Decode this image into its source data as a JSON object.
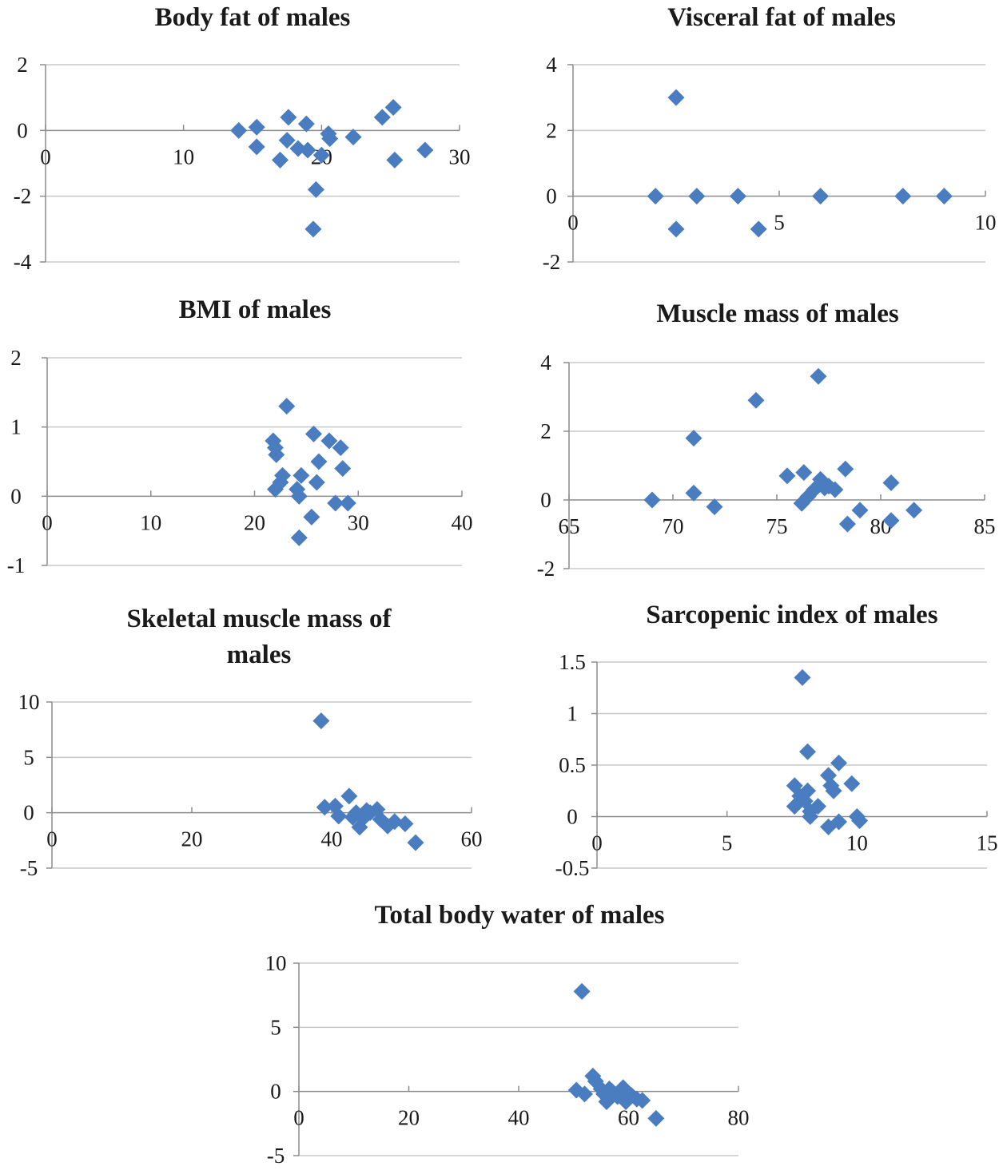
{
  "colors": {
    "marker": "#4a7cc0",
    "grid": "#c8c8c8",
    "axis": "#8c8c8c",
    "text": "#1a1a1a"
  },
  "chart_data": [
    {
      "id": "body-fat",
      "type": "scatter",
      "title": [
        "Body fat of males"
      ],
      "xlim": [
        0,
        30
      ],
      "xticks": [
        0,
        10,
        20,
        30
      ],
      "ylim": [
        -4,
        2
      ],
      "yticks": [
        2,
        0,
        -2,
        -4
      ],
      "points": [
        [
          14,
          0
        ],
        [
          15.3,
          0.1
        ],
        [
          15.3,
          -0.5
        ],
        [
          17,
          -0.9
        ],
        [
          17.6,
          0.4
        ],
        [
          17.5,
          -0.3
        ],
        [
          18.3,
          -0.55
        ],
        [
          18.9,
          0.2
        ],
        [
          19,
          -0.6
        ],
        [
          19.4,
          -3
        ],
        [
          19.6,
          -1.8
        ],
        [
          20,
          -0.75
        ],
        [
          20.5,
          -0.1
        ],
        [
          20.6,
          -0.25
        ],
        [
          22.3,
          -0.2
        ],
        [
          24.4,
          0.4
        ],
        [
          25.2,
          0.7
        ],
        [
          25.3,
          -0.9
        ],
        [
          27.5,
          -0.6
        ]
      ]
    },
    {
      "id": "visceral-fat",
      "type": "scatter",
      "title": [
        "Visceral fat of males"
      ],
      "xlim": [
        0,
        10
      ],
      "xticks": [
        0,
        5,
        10
      ],
      "ylim": [
        -2,
        4
      ],
      "yticks": [
        4,
        2,
        0,
        -2
      ],
      "points": [
        [
          2,
          0
        ],
        [
          2.5,
          3
        ],
        [
          2.5,
          -1
        ],
        [
          3,
          0
        ],
        [
          4,
          0
        ],
        [
          4.5,
          -1
        ],
        [
          6,
          0
        ],
        [
          8,
          0
        ],
        [
          9,
          0
        ]
      ]
    },
    {
      "id": "bmi",
      "type": "scatter",
      "title": [
        "BMI of males"
      ],
      "xlim": [
        0,
        40
      ],
      "xticks": [
        0,
        10,
        20,
        30,
        40
      ],
      "ylim": [
        -1,
        2
      ],
      "yticks": [
        2,
        1,
        0,
        -1
      ],
      "points": [
        [
          21.8,
          0.8
        ],
        [
          22,
          0.7
        ],
        [
          22.1,
          0.6
        ],
        [
          22,
          0.1
        ],
        [
          22.5,
          0.2
        ],
        [
          22.7,
          0.3
        ],
        [
          23.1,
          1.3
        ],
        [
          24.1,
          0.1
        ],
        [
          24.3,
          0
        ],
        [
          24.5,
          0.3
        ],
        [
          24.3,
          -0.6
        ],
        [
          25.5,
          -0.3
        ],
        [
          25.7,
          0.9
        ],
        [
          26,
          0.2
        ],
        [
          26.2,
          0.5
        ],
        [
          27.2,
          0.8
        ],
        [
          27.8,
          -0.1
        ],
        [
          28.3,
          0.7
        ],
        [
          28.5,
          0.4
        ],
        [
          29,
          -0.1
        ]
      ]
    },
    {
      "id": "muscle-mass",
      "type": "scatter",
      "title": [
        "Muscle mass of males"
      ],
      "xlim": [
        65,
        85
      ],
      "xticks": [
        65,
        70,
        75,
        80,
        85
      ],
      "ylim": [
        -2,
        4
      ],
      "yticks": [
        4,
        2,
        0,
        -2
      ],
      "points": [
        [
          69,
          0
        ],
        [
          71,
          1.8
        ],
        [
          71,
          0.2
        ],
        [
          72,
          -0.2
        ],
        [
          74,
          2.9
        ],
        [
          75.5,
          0.7
        ],
        [
          76.3,
          0.8
        ],
        [
          76.2,
          -0.1
        ],
        [
          76.5,
          0.1
        ],
        [
          76.8,
          0.3
        ],
        [
          77,
          3.6
        ],
        [
          77.1,
          0.6
        ],
        [
          77.3,
          0.35
        ],
        [
          77.5,
          0.4
        ],
        [
          77.8,
          0.3
        ],
        [
          78.3,
          0.9
        ],
        [
          78.4,
          -0.7
        ],
        [
          79,
          -0.3
        ],
        [
          80.5,
          0.5
        ],
        [
          80.5,
          -0.6
        ],
        [
          81.6,
          -0.3
        ]
      ]
    },
    {
      "id": "skeletal-muscle-mass",
      "type": "scatter",
      "title": [
        "Skeletal muscle mass of",
        "males"
      ],
      "xlim": [
        0,
        60
      ],
      "xticks": [
        0,
        20,
        40,
        60
      ],
      "ylim": [
        -5,
        10
      ],
      "yticks": [
        10,
        5,
        0,
        -5
      ],
      "points": [
        [
          38.5,
          8.3
        ],
        [
          39,
          0.5
        ],
        [
          40.5,
          0.6
        ],
        [
          41,
          -0.3
        ],
        [
          42.5,
          1.5
        ],
        [
          43,
          -0.4
        ],
        [
          43.5,
          0
        ],
        [
          44,
          -1.3
        ],
        [
          44.5,
          -0.5
        ],
        [
          45,
          0.2
        ],
        [
          45.5,
          0
        ],
        [
          46.5,
          0.3
        ],
        [
          47,
          -0.6
        ],
        [
          48,
          -1.2
        ],
        [
          49,
          -0.8
        ],
        [
          50.5,
          -1
        ],
        [
          52,
          -2.7
        ]
      ]
    },
    {
      "id": "sarcopenic-index",
      "type": "scatter",
      "title": [
        "Sarcopenic index of males"
      ],
      "xlim": [
        0,
        15
      ],
      "xticks": [
        0,
        5,
        10,
        15
      ],
      "ylim": [
        -0.5,
        1.5
      ],
      "yticks": [
        1.5,
        1,
        0.5,
        0,
        -0.5
      ],
      "points": [
        [
          7.6,
          0.3
        ],
        [
          7.6,
          0.1
        ],
        [
          7.8,
          0.2
        ],
        [
          7.9,
          1.35
        ],
        [
          8,
          0.15
        ],
        [
          8.1,
          0.25
        ],
        [
          8.1,
          0.63
        ],
        [
          8.2,
          0.05
        ],
        [
          8.2,
          0
        ],
        [
          8.5,
          0.1
        ],
        [
          8.9,
          -0.1
        ],
        [
          8.9,
          0.4
        ],
        [
          9,
          0.3
        ],
        [
          9.1,
          0.25
        ],
        [
          9.3,
          0.52
        ],
        [
          9.3,
          -0.05
        ],
        [
          9.8,
          0.32
        ],
        [
          10,
          0
        ],
        [
          10.1,
          -0.04
        ]
      ]
    },
    {
      "id": "total-body-water",
      "type": "scatter",
      "title": [
        "Total body water of males"
      ],
      "xlim": [
        0,
        80
      ],
      "xticks": [
        0,
        20,
        40,
        60,
        80
      ],
      "ylim": [
        -5,
        10
      ],
      "yticks": [
        10,
        5,
        0,
        -5
      ],
      "points": [
        [
          50.5,
          0.1
        ],
        [
          51.5,
          7.8
        ],
        [
          52,
          -0.2
        ],
        [
          53.5,
          1.2
        ],
        [
          54,
          0.8
        ],
        [
          55,
          0.2
        ],
        [
          55.5,
          -0.2
        ],
        [
          56,
          -0.8
        ],
        [
          56.5,
          0.2
        ],
        [
          57,
          0
        ],
        [
          58,
          -0.4
        ],
        [
          58.5,
          -0.1
        ],
        [
          59,
          0.3
        ],
        [
          59.5,
          -0.8
        ],
        [
          60.5,
          -0.3
        ],
        [
          61.5,
          -0.6
        ],
        [
          62.5,
          -0.7
        ],
        [
          65,
          -2.1
        ]
      ]
    }
  ]
}
